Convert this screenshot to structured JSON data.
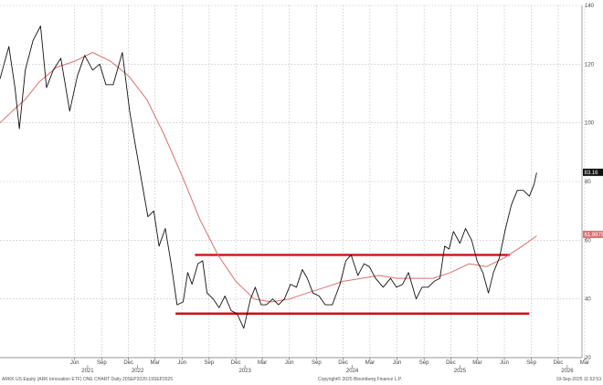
{
  "chart_data": {
    "type": "line",
    "title": "",
    "xlabel": "",
    "ylabel": "",
    "xlim": [
      "2020-09-20",
      "2026-02-20"
    ],
    "ylim": [
      20,
      140
    ],
    "y_ticks": [
      20,
      40,
      60,
      80,
      100,
      120,
      140
    ],
    "grid": true,
    "x_month_ticks": [
      {
        "date": "2021-06-01",
        "label": "Jun"
      },
      {
        "date": "2021-09-01",
        "label": "Sep"
      },
      {
        "date": "2021-12-01",
        "label": "Dec"
      },
      {
        "date": "2022-03-01",
        "label": "Mar"
      },
      {
        "date": "2022-06-01",
        "label": "Jun"
      },
      {
        "date": "2022-09-01",
        "label": "Sep"
      },
      {
        "date": "2022-12-01",
        "label": "Dec"
      },
      {
        "date": "2023-03-01",
        "label": "Mar"
      },
      {
        "date": "2023-06-01",
        "label": "Jun"
      },
      {
        "date": "2023-09-01",
        "label": "Sep"
      },
      {
        "date": "2023-12-01",
        "label": "Dec"
      },
      {
        "date": "2024-03-01",
        "label": "Mar"
      },
      {
        "date": "2024-06-01",
        "label": "Jun"
      },
      {
        "date": "2024-09-01",
        "label": "Sep"
      },
      {
        "date": "2024-12-01",
        "label": "Dec"
      },
      {
        "date": "2025-03-01",
        "label": "Mar"
      },
      {
        "date": "2025-06-01",
        "label": "Jun"
      },
      {
        "date": "2025-09-01",
        "label": "Sep"
      },
      {
        "date": "2025-12-01",
        "label": "Dec"
      },
      {
        "date": "2026-03-01",
        "label": "Mar"
      }
    ],
    "x_year_ticks": [
      {
        "date": "2021-07-15",
        "label": "2021"
      },
      {
        "date": "2022-01-01",
        "label": "2022"
      },
      {
        "date": "2023-01-01",
        "label": "2023"
      },
      {
        "date": "2024-01-01",
        "label": "2024"
      },
      {
        "date": "2025-01-01",
        "label": "2025"
      },
      {
        "date": "2026-01-01",
        "label": "2026"
      }
    ],
    "series": [
      {
        "color": "#111111",
        "points": [
          [
            "2020-09-20",
            115
          ],
          [
            "2020-10-20",
            126
          ],
          [
            "2020-11-10",
            112
          ],
          [
            "2020-11-25",
            98
          ],
          [
            "2020-12-15",
            118
          ],
          [
            "2021-01-10",
            128
          ],
          [
            "2021-02-05",
            133
          ],
          [
            "2021-02-25",
            112
          ],
          [
            "2021-03-20",
            118
          ],
          [
            "2021-04-15",
            122
          ],
          [
            "2021-05-15",
            104
          ],
          [
            "2021-06-10",
            116
          ],
          [
            "2021-07-05",
            123
          ],
          [
            "2021-08-01",
            118
          ],
          [
            "2021-08-25",
            120
          ],
          [
            "2021-09-15",
            113
          ],
          [
            "2021-10-10",
            113
          ],
          [
            "2021-11-10",
            124
          ],
          [
            "2021-12-05",
            104
          ],
          [
            "2021-12-25",
            92
          ],
          [
            "2022-01-15",
            80
          ],
          [
            "2022-02-05",
            68
          ],
          [
            "2022-02-25",
            70
          ],
          [
            "2022-03-15",
            58
          ],
          [
            "2022-04-05",
            64
          ],
          [
            "2022-04-25",
            52
          ],
          [
            "2022-05-15",
            38
          ],
          [
            "2022-06-05",
            39
          ],
          [
            "2022-06-20",
            49
          ],
          [
            "2022-07-05",
            45
          ],
          [
            "2022-07-25",
            52
          ],
          [
            "2022-08-10",
            53
          ],
          [
            "2022-08-25",
            42
          ],
          [
            "2022-09-15",
            40
          ],
          [
            "2022-10-05",
            37
          ],
          [
            "2022-10-25",
            41
          ],
          [
            "2022-11-15",
            36
          ],
          [
            "2022-12-05",
            35
          ],
          [
            "2022-12-28",
            30
          ],
          [
            "2023-01-20",
            40
          ],
          [
            "2023-02-05",
            44
          ],
          [
            "2023-02-25",
            38
          ],
          [
            "2023-03-15",
            38
          ],
          [
            "2023-04-05",
            40
          ],
          [
            "2023-04-25",
            38
          ],
          [
            "2023-05-15",
            40
          ],
          [
            "2023-06-05",
            45
          ],
          [
            "2023-06-25",
            44
          ],
          [
            "2023-07-15",
            50
          ],
          [
            "2023-08-01",
            47
          ],
          [
            "2023-08-20",
            42
          ],
          [
            "2023-09-10",
            41
          ],
          [
            "2023-10-01",
            38
          ],
          [
            "2023-10-25",
            38
          ],
          [
            "2023-11-20",
            45
          ],
          [
            "2023-12-10",
            53
          ],
          [
            "2023-12-28",
            55
          ],
          [
            "2024-01-20",
            48
          ],
          [
            "2024-02-10",
            52
          ],
          [
            "2024-02-28",
            51
          ],
          [
            "2024-03-20",
            47
          ],
          [
            "2024-04-15",
            44
          ],
          [
            "2024-05-10",
            47
          ],
          [
            "2024-05-30",
            44
          ],
          [
            "2024-06-20",
            45
          ],
          [
            "2024-07-10",
            49
          ],
          [
            "2024-08-05",
            40
          ],
          [
            "2024-08-25",
            44
          ],
          [
            "2024-09-15",
            44
          ],
          [
            "2024-10-05",
            46
          ],
          [
            "2024-10-25",
            47
          ],
          [
            "2024-11-10",
            58
          ],
          [
            "2024-11-25",
            57
          ],
          [
            "2024-12-10",
            63
          ],
          [
            "2025-01-01",
            59
          ],
          [
            "2025-01-20",
            64
          ],
          [
            "2025-02-10",
            60
          ],
          [
            "2025-02-28",
            53
          ],
          [
            "2025-03-20",
            49
          ],
          [
            "2025-04-08",
            42
          ],
          [
            "2025-04-25",
            49
          ],
          [
            "2025-05-15",
            54
          ],
          [
            "2025-06-05",
            64
          ],
          [
            "2025-06-25",
            72
          ],
          [
            "2025-07-15",
            77
          ],
          [
            "2025-08-05",
            77
          ],
          [
            "2025-08-25",
            75
          ],
          [
            "2025-09-10",
            79
          ],
          [
            "2025-09-19",
            83
          ]
        ]
      },
      {
        "color": "#d97070",
        "points": [
          [
            "2020-09-20",
            100
          ],
          [
            "2020-11-01",
            104
          ],
          [
            "2020-12-15",
            108
          ],
          [
            "2021-02-01",
            114
          ],
          [
            "2021-04-01",
            119
          ],
          [
            "2021-06-01",
            121
          ],
          [
            "2021-08-01",
            124
          ],
          [
            "2021-10-01",
            121
          ],
          [
            "2021-12-01",
            116
          ],
          [
            "2022-02-01",
            108
          ],
          [
            "2022-04-01",
            96
          ],
          [
            "2022-06-01",
            82
          ],
          [
            "2022-08-01",
            67
          ],
          [
            "2022-10-01",
            55
          ],
          [
            "2022-12-01",
            46
          ],
          [
            "2023-02-01",
            40
          ],
          [
            "2023-04-01",
            39
          ],
          [
            "2023-06-01",
            40
          ],
          [
            "2023-08-01",
            42
          ],
          [
            "2023-10-01",
            44
          ],
          [
            "2023-12-01",
            46
          ],
          [
            "2024-02-01",
            47
          ],
          [
            "2024-04-01",
            48
          ],
          [
            "2024-06-01",
            47
          ],
          [
            "2024-08-01",
            47
          ],
          [
            "2024-10-01",
            47
          ],
          [
            "2024-12-01",
            49
          ],
          [
            "2025-02-01",
            52
          ],
          [
            "2025-04-01",
            51
          ],
          [
            "2025-06-01",
            54
          ],
          [
            "2025-08-01",
            58
          ],
          [
            "2025-09-19",
            61.5
          ]
        ]
      }
    ],
    "annotation_lines": [
      {
        "color": "#cc1111",
        "y": 55,
        "x_start": "2022-07-15",
        "x_end": "2025-06-20"
      },
      {
        "color": "#cc1111",
        "y": 35,
        "x_start": "2022-05-10",
        "x_end": "2025-08-25"
      }
    ],
    "value_tags": [
      {
        "label": "83.16",
        "y": 83.16,
        "bg": "#111111",
        "fg": "#ffffff"
      },
      {
        "label": "61.9879",
        "y": 61.99,
        "bg": "#d97070",
        "fg": "#ffffff"
      }
    ],
    "footer": {
      "left": "ARKK US Equity (ARK Innovation ETF) ONE CHART  Daily 20SEP2020-19SEP2025",
      "center": "Copyright© 2025 Bloomberg Finance L.P.",
      "right": "19-Sep-2025 11:52:53"
    }
  }
}
